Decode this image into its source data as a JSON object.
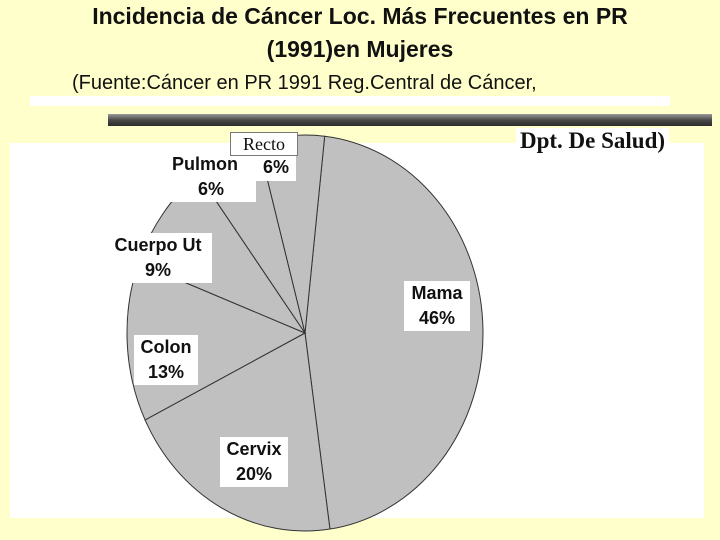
{
  "chart_data": {
    "type": "pie",
    "title_line1": "Incidencia de Cáncer Loc. Más Frecuentes en PR",
    "title_line2": "(1991)en Mujeres",
    "subtitle": "(Fuente:Cáncer en PR 1991 Reg.Central de Cáncer,",
    "subtitle_suffix": "Dpt. De Salud)",
    "slice_color": "#c0c0c0",
    "edge_color": "#333333",
    "slices": [
      {
        "label": "Mama",
        "value": 46,
        "display": "46%"
      },
      {
        "label": "Cervix",
        "value": 20,
        "display": "20%"
      },
      {
        "label": "Colon",
        "value": 13,
        "display": "13%"
      },
      {
        "label": "Cuerpo Ut",
        "value": 9,
        "display": "9%"
      },
      {
        "label": "Pulmon",
        "value": 6,
        "display": "6%"
      },
      {
        "label": "Recto",
        "value": 6,
        "display": "6%"
      }
    ]
  }
}
